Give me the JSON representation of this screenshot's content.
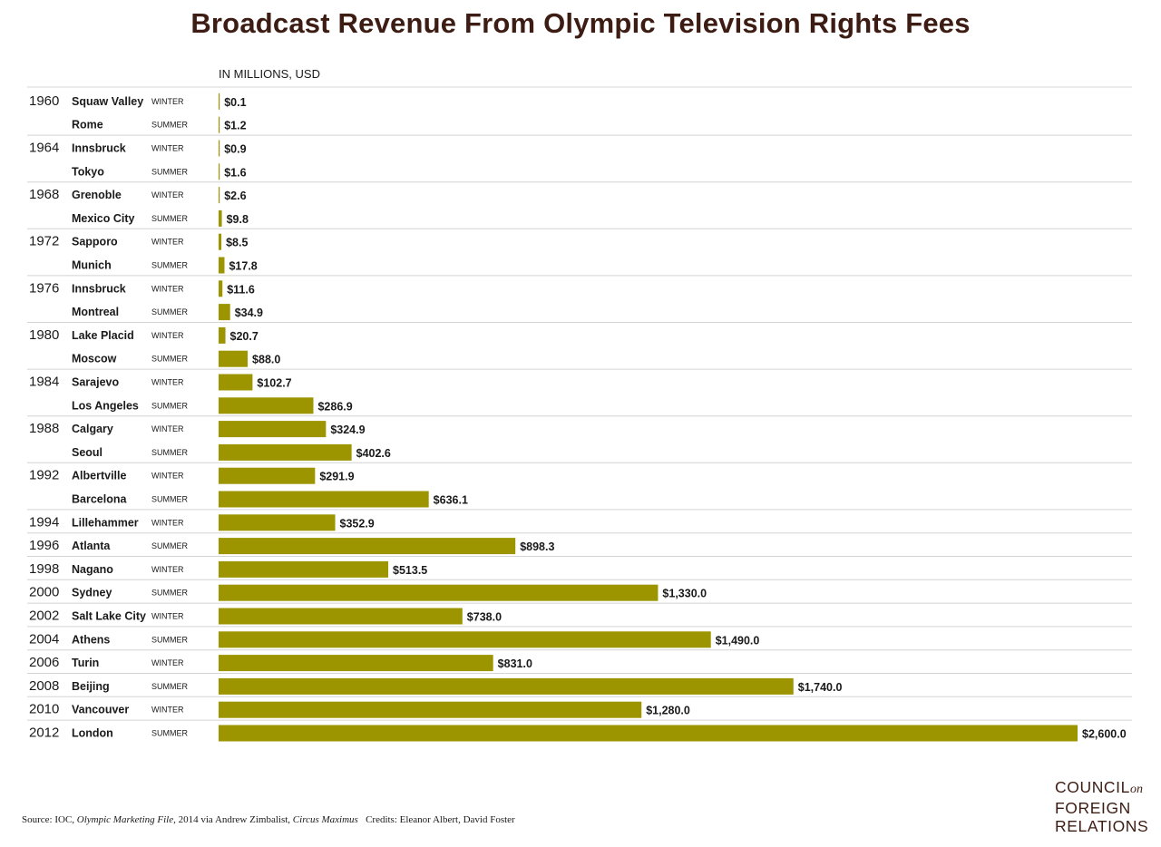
{
  "title": "Broadcast Revenue From Olympic Television Rights Fees",
  "units_label": "IN MILLIONS, USD",
  "colors": {
    "bar": "#9c9500",
    "title": "#3d1d13",
    "rule": "#d4d4d4"
  },
  "source": {
    "prefix": "Source: IOC, ",
    "work1": "Olympic Marketing File",
    "mid": ", 2014 via Andrew Zimbalist, ",
    "work2": "Circus Maximus",
    "credits": "Credits: Eleanor Albert, David Foster"
  },
  "logo": {
    "line1": "COUNCIL",
    "line1_suffix": "on",
    "line2": "FOREIGN",
    "line3": "RELATIONS"
  },
  "chart_data": {
    "type": "bar",
    "orientation": "horizontal",
    "title": "Broadcast Revenue From Olympic Television Rights Fees",
    "xlabel": "IN MILLIONS, USD",
    "xlim": [
      0,
      2600
    ],
    "rows": [
      {
        "year": "1960",
        "city": "Squaw Valley",
        "season": "WINTER",
        "value": 0.1,
        "label": "$0.1"
      },
      {
        "year": "",
        "city": "Rome",
        "season": "SUMMER",
        "value": 1.2,
        "label": "$1.2"
      },
      {
        "year": "1964",
        "city": "Innsbruck",
        "season": "WINTER",
        "value": 0.9,
        "label": "$0.9"
      },
      {
        "year": "",
        "city": "Tokyo",
        "season": "SUMMER",
        "value": 1.6,
        "label": "$1.6"
      },
      {
        "year": "1968",
        "city": "Grenoble",
        "season": "WINTER",
        "value": 2.6,
        "label": "$2.6"
      },
      {
        "year": "",
        "city": "Mexico City",
        "season": "SUMMER",
        "value": 9.8,
        "label": "$9.8"
      },
      {
        "year": "1972",
        "city": "Sapporo",
        "season": "WINTER",
        "value": 8.5,
        "label": "$8.5"
      },
      {
        "year": "",
        "city": "Munich",
        "season": "SUMMER",
        "value": 17.8,
        "label": "$17.8"
      },
      {
        "year": "1976",
        "city": "Innsbruck",
        "season": "WINTER",
        "value": 11.6,
        "label": "$11.6"
      },
      {
        "year": "",
        "city": "Montreal",
        "season": "SUMMER",
        "value": 34.9,
        "label": "$34.9"
      },
      {
        "year": "1980",
        "city": "Lake Placid",
        "season": "WINTER",
        "value": 20.7,
        "label": "$20.7"
      },
      {
        "year": "",
        "city": "Moscow",
        "season": "SUMMER",
        "value": 88.0,
        "label": "$88.0"
      },
      {
        "year": "1984",
        "city": "Sarajevo",
        "season": "WINTER",
        "value": 102.7,
        "label": "$102.7"
      },
      {
        "year": "",
        "city": "Los Angeles",
        "season": "SUMMER",
        "value": 286.9,
        "label": "$286.9"
      },
      {
        "year": "1988",
        "city": "Calgary",
        "season": "WINTER",
        "value": 324.9,
        "label": "$324.9"
      },
      {
        "year": "",
        "city": "Seoul",
        "season": "SUMMER",
        "value": 402.6,
        "label": "$402.6"
      },
      {
        "year": "1992",
        "city": "Albertville",
        "season": "WINTER",
        "value": 291.9,
        "label": "$291.9"
      },
      {
        "year": "",
        "city": "Barcelona",
        "season": "SUMMER",
        "value": 636.1,
        "label": "$636.1"
      },
      {
        "year": "1994",
        "city": "Lillehammer",
        "season": "WINTER",
        "value": 352.9,
        "label": "$352.9"
      },
      {
        "year": "1996",
        "city": "Atlanta",
        "season": "SUMMER",
        "value": 898.3,
        "label": "$898.3"
      },
      {
        "year": "1998",
        "city": "Nagano",
        "season": "WINTER",
        "value": 513.5,
        "label": "$513.5"
      },
      {
        "year": "2000",
        "city": "Sydney",
        "season": "SUMMER",
        "value": 1330.0,
        "label": "$1,330.0"
      },
      {
        "year": "2002",
        "city": "Salt Lake City",
        "season": "WINTER",
        "value": 738.0,
        "label": "$738.0"
      },
      {
        "year": "2004",
        "city": "Athens",
        "season": "SUMMER",
        "value": 1490.0,
        "label": "$1,490.0"
      },
      {
        "year": "2006",
        "city": "Turin",
        "season": "WINTER",
        "value": 831.0,
        "label": "$831.0"
      },
      {
        "year": "2008",
        "city": "Beijing",
        "season": "SUMMER",
        "value": 1740.0,
        "label": "$1,740.0"
      },
      {
        "year": "2010",
        "city": "Vancouver",
        "season": "WINTER",
        "value": 1280.0,
        "label": "$1,280.0"
      },
      {
        "year": "2012",
        "city": "London",
        "season": "SUMMER",
        "value": 2600.0,
        "label": "$2,600.0"
      }
    ]
  }
}
